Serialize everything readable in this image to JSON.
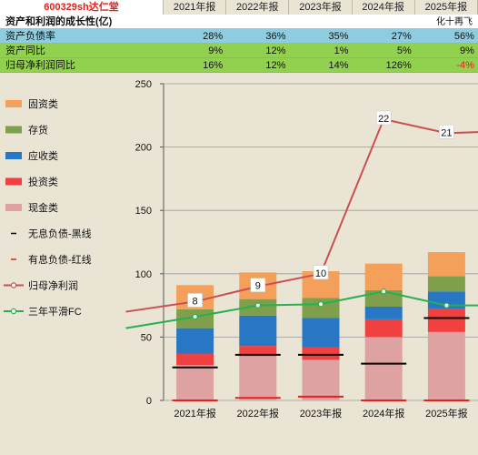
{
  "header": {
    "code": "600329sh达仁堂",
    "years": [
      "2021年报",
      "2022年报",
      "2023年报",
      "2024年报",
      "2025年报"
    ]
  },
  "section": {
    "title": "资产和利润的成长性(亿)",
    "author": "化十再飞"
  },
  "rows": [
    {
      "label": "资产负债率",
      "bg": "#8ecce0",
      "values": [
        "28%",
        "36%",
        "35%",
        "27%",
        "56%"
      ]
    },
    {
      "label": "资产同比",
      "bg": "#92d050",
      "values": [
        "9%",
        "12%",
        "1%",
        "5%",
        "9%"
      ]
    },
    {
      "label": "归母净利润同比",
      "bg": "#92d050",
      "values": [
        "16%",
        "12%",
        "14%",
        "126%",
        "-4%"
      ]
    }
  ],
  "colors": {
    "fixed": "#f5a05a",
    "inventory": "#7f9f4c",
    "receivable": "#2777c4",
    "investment": "#f04040",
    "cash": "#dea2a2",
    "profit_line": "#c95050",
    "smooth_line": "#27b050",
    "no_interest_debt": "#000000",
    "interest_debt": "#e8201a"
  },
  "chart_data": {
    "type": "bar",
    "categories": [
      "2021年报",
      "2022年报",
      "2023年报",
      "2024年报",
      "2025年报"
    ],
    "ylim": [
      0,
      250
    ],
    "yticks": [
      0,
      50,
      100,
      150,
      200,
      250
    ],
    "stacked_series": [
      {
        "name": "现金类",
        "key": "cash",
        "values": [
          28,
          35,
          32,
          50,
          54
        ]
      },
      {
        "name": "投资类",
        "key": "investment",
        "values": [
          9,
          8,
          10,
          14,
          18
        ]
      },
      {
        "name": "应收类",
        "key": "receivable",
        "values": [
          20,
          24,
          23,
          10,
          14
        ]
      },
      {
        "name": "存货",
        "key": "inventory",
        "values": [
          15,
          13,
          16,
          13,
          12
        ]
      },
      {
        "name": "固资类",
        "key": "fixed",
        "values": [
          19,
          21,
          21,
          21,
          19
        ]
      }
    ],
    "debt_markers": [
      {
        "name": "无息负债-黑线",
        "key": "no_interest_debt",
        "values": [
          26,
          36,
          36,
          29,
          65
        ]
      },
      {
        "name": "有息负债-红线",
        "key": "interest_debt",
        "values": [
          0,
          2,
          3,
          0,
          0
        ]
      }
    ],
    "lines": [
      {
        "name": "归母净利润",
        "key": "profit_line",
        "x": [
          -0.6,
          0.5,
          1.5,
          2.5,
          3.5,
          4.5,
          5.1
        ],
        "values": [
          70,
          78,
          90,
          100,
          222,
          211,
          212
        ]
      },
      {
        "name": "三年平滑FC",
        "key": "smooth_line",
        "x": [
          -0.6,
          0.5,
          1.5,
          2.5,
          3.5,
          4.5,
          5.1
        ],
        "values": [
          57,
          66,
          75,
          76,
          86,
          75,
          75
        ]
      }
    ],
    "profit_labels": [
      {
        "x": 0.5,
        "y": 78,
        "text": "8"
      },
      {
        "x": 1.5,
        "y": 90,
        "text": "9"
      },
      {
        "x": 2.5,
        "y": 100,
        "text": "10"
      },
      {
        "x": 3.5,
        "y": 222,
        "text": "22"
      },
      {
        "x": 4.5,
        "y": 211,
        "text": "21"
      }
    ],
    "legend": [
      {
        "name": "固资类",
        "key": "fixed",
        "kind": "box"
      },
      {
        "name": "存货",
        "key": "inventory",
        "kind": "box"
      },
      {
        "name": "应收类",
        "key": "receivable",
        "kind": "box"
      },
      {
        "name": "投资类",
        "key": "investment",
        "kind": "box"
      },
      {
        "name": "现金类",
        "key": "cash",
        "kind": "box"
      },
      {
        "name": "无息负债-黑线",
        "key": "no_interest_debt",
        "kind": "dash"
      },
      {
        "name": "有息负债-红线",
        "key": "interest_debt",
        "kind": "dash"
      },
      {
        "name": "归母净利润",
        "key": "profit_line",
        "kind": "line"
      },
      {
        "name": "三年平滑FC",
        "key": "smooth_line",
        "kind": "line"
      }
    ]
  }
}
